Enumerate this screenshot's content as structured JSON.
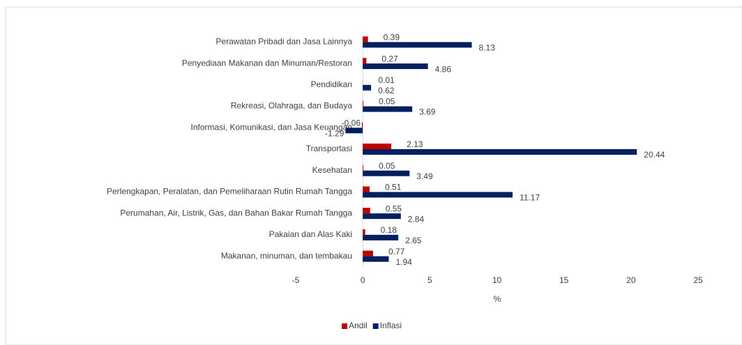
{
  "chart_data": {
    "type": "hbar",
    "categories": [
      "Makanan, minuman, dan tembakau",
      "Pakaian dan Alas Kaki",
      "Perumahan, Air, Listrik, Gas, dan Bahan Bakar Rumah Tangga",
      "Perlengkapan, Peralatan, dan Pemeliharaan Rutin Rumah Tangga",
      "Kesehatan",
      "Transportasi",
      "Informasi, Komunikasi, dan Jasa Keuangan",
      "Rekreasi, Olahraga, dan Budaya",
      "Pendidikan",
      "Penyediaan Makanan dan Minuman/Restoran",
      "Perawatan Pribadi dan Jasa Lainnya"
    ],
    "series": [
      {
        "name": "Andil",
        "color": "#c00000",
        "values": [
          0.77,
          0.18,
          0.55,
          0.51,
          0.05,
          2.13,
          -0.06,
          0.05,
          0.01,
          0.27,
          0.39
        ]
      },
      {
        "name": "Inflasi",
        "color": "#002060",
        "values": [
          1.94,
          2.65,
          2.84,
          11.17,
          3.49,
          20.44,
          -1.29,
          3.69,
          0.62,
          4.86,
          8.13
        ]
      }
    ],
    "xlim": [
      -5,
      25
    ],
    "xticks": [
      -5,
      0,
      5,
      10,
      15,
      20,
      25
    ],
    "xlabel": "%",
    "legend": "bottom"
  }
}
